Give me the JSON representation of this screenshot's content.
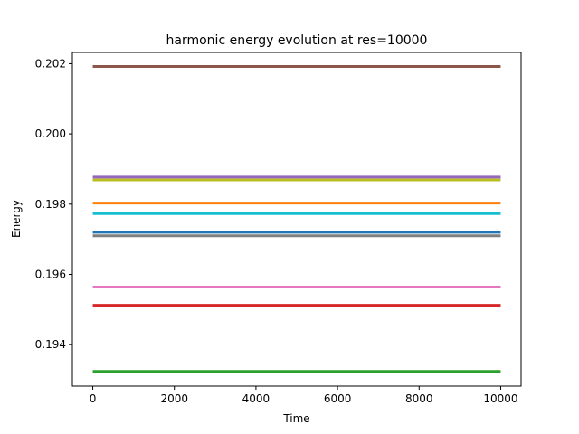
{
  "chart_data": {
    "type": "line",
    "title": "harmonic energy evolution at res=10000",
    "xlabel": "Time",
    "ylabel": "Energy",
    "xlim": [
      -500,
      10500
    ],
    "ylim": [
      0.19282,
      0.20232
    ],
    "xticks": [
      0,
      2000,
      4000,
      6000,
      8000,
      10000
    ],
    "yticks": [
      0.194,
      0.196,
      0.198,
      0.2,
      0.202
    ],
    "ytick_labels": [
      "0.194",
      "0.196",
      "0.198",
      "0.200",
      "0.202"
    ],
    "grid": false,
    "x": [
      0,
      10000
    ],
    "series": [
      {
        "color": "#1f77b4",
        "values": [
          0.1972,
          0.1972
        ]
      },
      {
        "color": "#ff7f0e",
        "values": [
          0.19803,
          0.19803
        ]
      },
      {
        "color": "#2ca02c",
        "values": [
          0.19324,
          0.19324
        ]
      },
      {
        "color": "#d62728",
        "values": [
          0.19512,
          0.19512
        ]
      },
      {
        "color": "#9467bd",
        "values": [
          0.19877,
          0.19877
        ]
      },
      {
        "color": "#8c564b",
        "values": [
          0.20192,
          0.20192
        ]
      },
      {
        "color": "#e377c2",
        "values": [
          0.19564,
          0.19564
        ]
      },
      {
        "color": "#7f7f7f",
        "values": [
          0.1971,
          0.1971
        ]
      },
      {
        "color": "#bcbd22",
        "values": [
          0.19869,
          0.19869
        ]
      },
      {
        "color": "#17becf",
        "values": [
          0.19773,
          0.19773
        ]
      }
    ]
  }
}
